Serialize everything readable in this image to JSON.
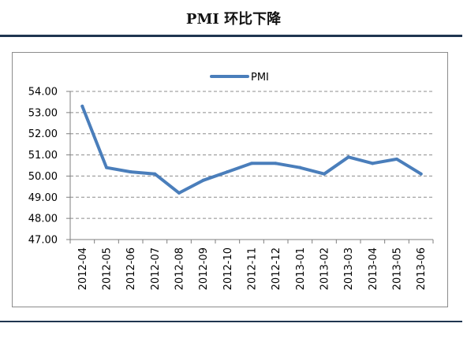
{
  "page": {
    "title": "PMI 环比下降"
  },
  "colors": {
    "line": "#4a7ebb",
    "grid": "#8c8c8c",
    "rule": "#1f3550"
  },
  "chart_data": {
    "type": "line",
    "title": "",
    "xlabel": "",
    "ylabel": "",
    "categories": [
      "2012-04",
      "2012-05",
      "2012-06",
      "2012-07",
      "2012-08",
      "2012-09",
      "2012-10",
      "2012-11",
      "2012-12",
      "2013-01",
      "2013-02",
      "2013-03",
      "2013-04",
      "2013-05",
      "2013-06"
    ],
    "series": [
      {
        "name": "PMI",
        "values": [
          53.3,
          50.4,
          50.2,
          50.1,
          49.2,
          49.8,
          50.2,
          50.6,
          50.6,
          50.4,
          50.1,
          50.9,
          50.6,
          50.8,
          50.1
        ]
      }
    ],
    "ylim": [
      47.0,
      54.0
    ],
    "yticks": [
      "47.00",
      "48.00",
      "49.00",
      "50.00",
      "51.00",
      "52.00",
      "53.00",
      "54.00"
    ],
    "grid": "dashed horizontal",
    "legend": "top-center"
  }
}
